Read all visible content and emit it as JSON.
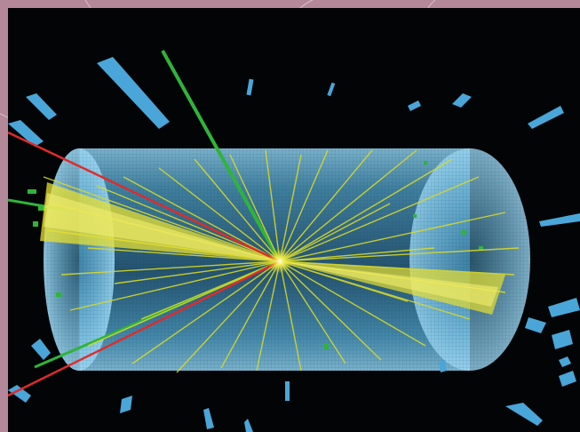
{
  "image": {
    "background_color": "#020406",
    "frame_color": "#b48898",
    "detector_color": "#5ab4e0",
    "track_color": "#d8d82a",
    "muon_color": "#e22a2a",
    "electron_color": "#2fb43a"
  }
}
